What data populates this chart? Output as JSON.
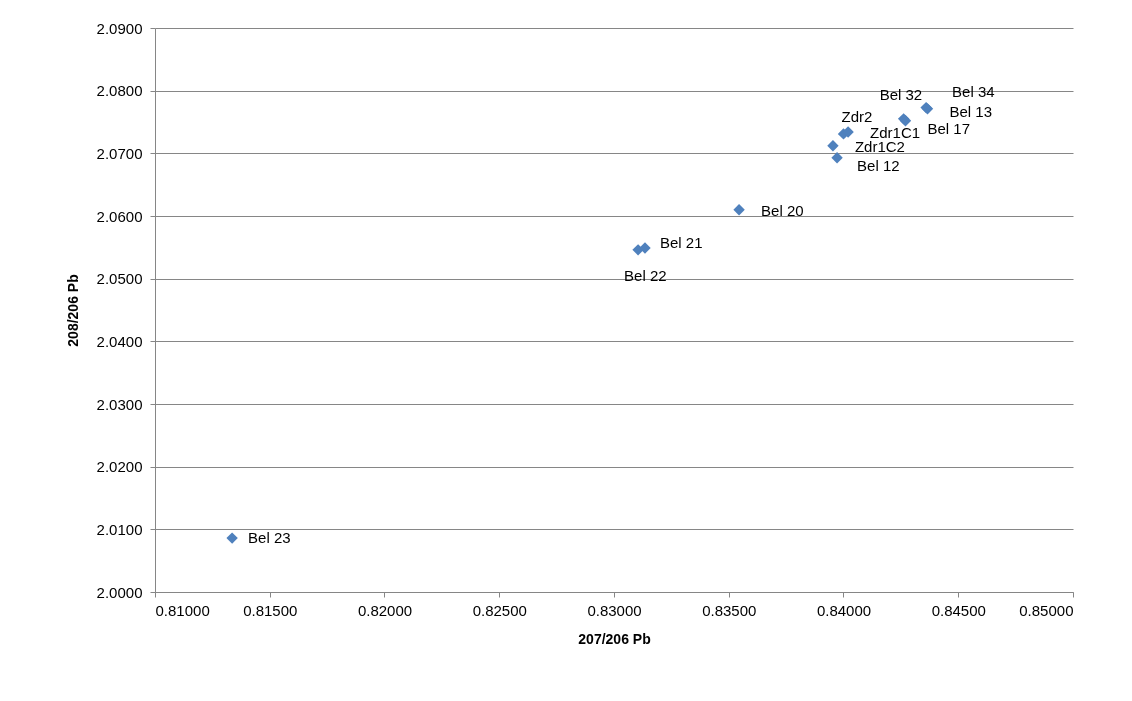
{
  "chart_data": {
    "type": "scatter",
    "xlabel": "207/206 Pb",
    "ylabel": "208/206 Pb",
    "xlim": [
      0.81,
      0.85
    ],
    "xticks": [
      {
        "value": 0.81,
        "label": "0.81000"
      },
      {
        "value": 0.815,
        "label": "0.81500"
      },
      {
        "value": 0.82,
        "label": "0.82000"
      },
      {
        "value": 0.825,
        "label": "0.82500"
      },
      {
        "value": 0.83,
        "label": "0.83000"
      },
      {
        "value": 0.835,
        "label": "0.83500"
      },
      {
        "value": 0.84,
        "label": "0.84000"
      },
      {
        "value": 0.845,
        "label": "0.84500"
      },
      {
        "value": 0.85,
        "label": "0.85000"
      }
    ],
    "ylim": [
      2.0,
      2.09
    ],
    "yticks": [
      {
        "value": 2.0,
        "label": "2.0000"
      },
      {
        "value": 2.01,
        "label": "2.0100"
      },
      {
        "value": 2.02,
        "label": "2.0200"
      },
      {
        "value": 2.03,
        "label": "2.0300"
      },
      {
        "value": 2.04,
        "label": "2.0400"
      },
      {
        "value": 2.05,
        "label": "2.0500"
      },
      {
        "value": 2.06,
        "label": "2.0600"
      },
      {
        "value": 2.07,
        "label": "2.0700"
      },
      {
        "value": 2.08,
        "label": "2.0800"
      },
      {
        "value": 2.09,
        "label": "2.0900"
      }
    ],
    "grid": "y",
    "marker": "diamond",
    "series": [
      {
        "color": "#4f81bd",
        "x": [
          0.81336,
          0.83105,
          0.83135,
          0.83545,
          0.83972,
          0.83954,
          0.84,
          0.8402,
          0.8427,
          0.84262,
          0.84366,
          0.8436
        ],
        "values": [
          2.0086,
          2.0546,
          2.0549,
          2.061,
          2.0693,
          2.0712,
          2.0731,
          2.0734,
          2.0752,
          2.0755,
          2.0771,
          2.0773
        ]
      }
    ],
    "annotations": [
      {
        "text": "Bel 23",
        "x": 0.81336,
        "y": 2.0086
      },
      {
        "text": "Bel 22",
        "x": 0.83105,
        "y": 2.0546
      },
      {
        "text": "Bel 21",
        "x": 0.83135,
        "y": 2.0549
      },
      {
        "text": "Bel 20",
        "x": 0.83545,
        "y": 2.061
      },
      {
        "text": "Bel 12",
        "x": 0.83972,
        "y": 2.0693
      },
      {
        "text": "Zdr1C2",
        "x": 0.83954,
        "y": 2.0712
      },
      {
        "text": "Zdr2",
        "x": 0.84,
        "y": 2.0731
      },
      {
        "text": "Zdr1C1",
        "x": 0.8402,
        "y": 2.0734
      },
      {
        "text": "Bel 17",
        "x": 0.8427,
        "y": 2.0752
      },
      {
        "text": "Bel 32",
        "x": 0.84262,
        "y": 2.0755
      },
      {
        "text": "Bel 13",
        "x": 0.84366,
        "y": 2.0771
      },
      {
        "text": "Bel 34",
        "x": 0.8436,
        "y": 2.0773
      }
    ]
  }
}
